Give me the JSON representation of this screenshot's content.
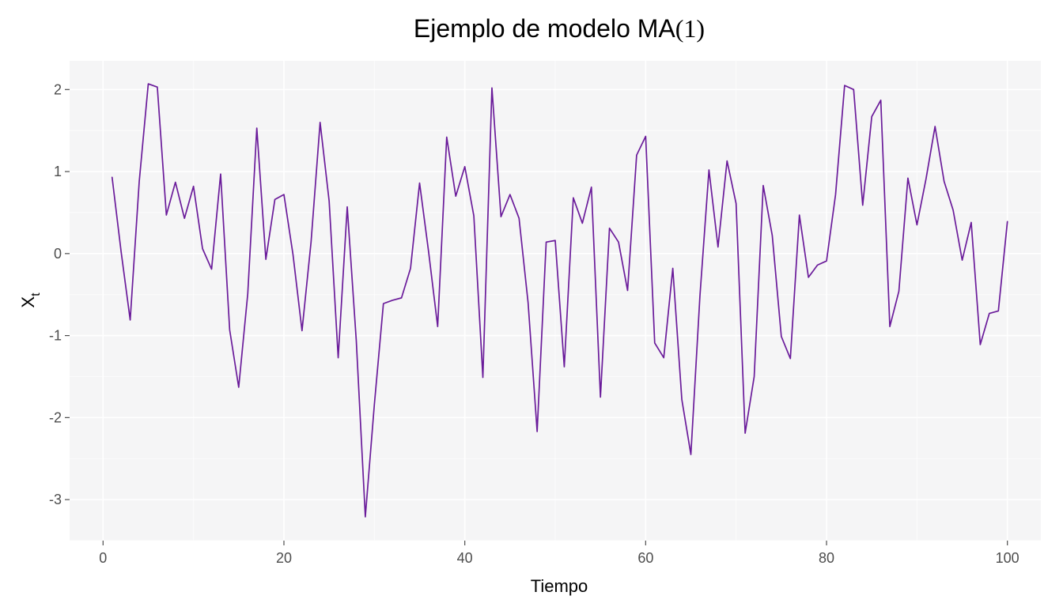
{
  "chart_data": {
    "type": "line",
    "title": "Ejemplo de modelo MA(1)",
    "title_parts": {
      "main": "Ejemplo de modelo MA",
      "paren_open": "(",
      "order": "1",
      "paren_close": ")"
    },
    "xlabel": "Tiempo",
    "ylabel": "X",
    "ylabel_subscript": "t",
    "xlim": [
      -3.7,
      103.7
    ],
    "ylim": [
      -3.5,
      2.35
    ],
    "x_ticks": [
      0,
      20,
      40,
      60,
      80,
      100
    ],
    "y_ticks": [
      -3,
      -2,
      -1,
      0,
      1,
      2
    ],
    "x_tick_labels": [
      "0",
      "20",
      "40",
      "60",
      "80",
      "100"
    ],
    "y_tick_labels": [
      "-3",
      "-2",
      "-1",
      "0",
      "1",
      "2"
    ],
    "grid": true,
    "series_color": "#6a1b9a",
    "panel_color": "#f5f5f6",
    "series": [
      {
        "x": [
          1,
          2,
          3,
          4,
          5,
          6,
          7,
          8,
          9,
          10,
          11,
          12,
          13,
          14,
          15,
          16,
          17,
          18,
          19,
          20,
          21,
          22,
          23,
          24,
          25,
          26,
          27,
          28,
          29,
          30,
          31,
          32,
          33,
          34,
          35,
          36,
          37,
          38,
          39,
          40,
          41,
          42,
          43,
          44,
          45,
          46,
          47,
          48,
          49,
          50,
          51,
          52,
          53,
          54,
          55,
          56,
          57,
          58,
          59,
          60,
          61,
          62,
          63,
          64,
          65,
          66,
          67,
          68,
          69,
          70,
          71,
          72,
          73,
          74,
          75,
          76,
          77,
          78,
          79,
          80,
          81,
          82,
          83,
          84,
          85,
          86,
          87,
          88,
          89,
          90,
          91,
          92,
          93,
          94,
          95,
          96,
          97,
          98,
          99,
          100
        ],
        "values": [
          0.93,
          0.02,
          -0.81,
          0.88,
          2.07,
          2.03,
          0.47,
          0.87,
          0.43,
          0.82,
          0.06,
          -0.19,
          0.97,
          -0.93,
          -1.63,
          -0.49,
          1.53,
          -0.07,
          0.66,
          0.72,
          -0.01,
          -0.94,
          0.14,
          1.6,
          0.64,
          -1.27,
          0.57,
          -1.06,
          -3.21,
          -1.84,
          -0.61,
          -0.57,
          -0.54,
          -0.18,
          0.86,
          0.02,
          -0.89,
          1.42,
          0.7,
          1.06,
          0.46,
          -1.51,
          2.02,
          0.45,
          0.72,
          0.43,
          -0.6,
          -2.17,
          0.14,
          0.16,
          -1.38,
          0.68,
          0.37,
          0.81,
          -1.75,
          0.31,
          0.14,
          -0.45,
          1.2,
          1.43,
          -1.09,
          -1.27,
          -0.18,
          -1.78,
          -2.45,
          -0.52,
          1.02,
          0.08,
          1.13,
          0.61,
          -2.19,
          -1.5,
          0.83,
          0.22,
          -1.01,
          -1.28,
          0.47,
          -0.29,
          -0.14,
          -0.09,
          0.72,
          2.05,
          2.0,
          0.59,
          1.67,
          1.87,
          -0.89,
          -0.46,
          0.92,
          0.35,
          0.91,
          1.55,
          0.88,
          0.53,
          -0.08,
          0.38,
          -1.11,
          -0.73,
          -0.7,
          0.39
        ]
      }
    ]
  }
}
